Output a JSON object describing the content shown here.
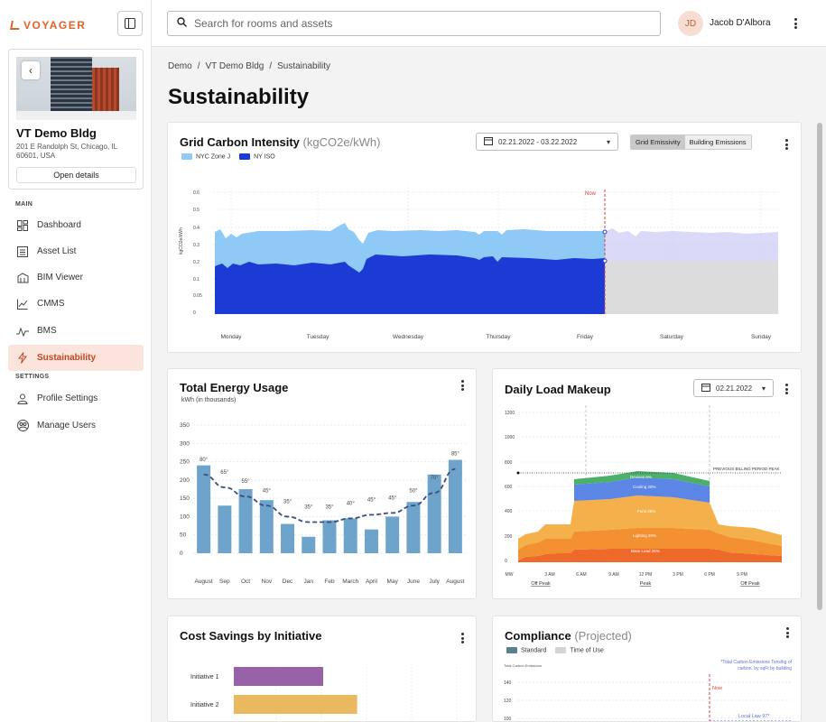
{
  "brand": {
    "name": "VOYAGER",
    "accent": "#e0622d"
  },
  "building": {
    "name": "VT Demo Bldg",
    "address": "201 E Randolph St, Chicago, IL 60601, USA",
    "open_details": "Open details"
  },
  "nav": {
    "main_label": "MAIN",
    "settings_label": "SETTINGS",
    "items": [
      {
        "label": "Dashboard",
        "icon": "dashboard-icon"
      },
      {
        "label": "Asset List",
        "icon": "list-icon"
      },
      {
        "label": "BIM Viewer",
        "icon": "building-icon"
      },
      {
        "label": "CMMS",
        "icon": "chart-icon"
      },
      {
        "label": "BMS",
        "icon": "pulse-icon"
      },
      {
        "label": "Sustainability",
        "icon": "bolt-icon",
        "active": true
      }
    ],
    "settings_items": [
      {
        "label": "Profile Settings",
        "icon": "user-icon"
      },
      {
        "label": "Manage Users",
        "icon": "users-icon"
      }
    ]
  },
  "search": {
    "placeholder": "Search for rooms and assets",
    "value": ""
  },
  "user": {
    "initials": "JD",
    "name": "Jacob D'Albora"
  },
  "breadcrumb": [
    "Demo",
    "VT Demo Bldg",
    "Sustainability"
  ],
  "page_title": "Sustainability",
  "grid_carbon": {
    "title": "Grid Carbon Intensity",
    "unit": "(kgCO2e/kWh)",
    "date_range": "02.21.2022 - 03.22.2022",
    "toggles": [
      "Grid Emissivity",
      "Building Emissions"
    ],
    "active_toggle": "Grid Emissivity",
    "legend": [
      {
        "name": "NYC Zone J",
        "color": "#8fc9f5"
      },
      {
        "name": "NY ISO",
        "color": "#1b3bd4"
      }
    ],
    "now_label": "Now",
    "ylabel": "kgCO2e/kWh",
    "y_ticks": [
      "0",
      "0.05",
      "0.1",
      "0.2",
      "0.3",
      "0.4",
      "0.5",
      "0.6"
    ],
    "days": [
      "Monday",
      "Tuesday",
      "Wednesday",
      "Thursday",
      "Friday",
      "Saturday",
      "Sunday"
    ]
  },
  "energy_usage": {
    "title": "Total Energy Usage",
    "subtitle": "kWh (in thousands)"
  },
  "daily_load": {
    "title": "Daily Load Makeup",
    "date": "02.21.2022",
    "y_ticks": [
      "0",
      "200",
      "400",
      "600",
      "800",
      "1000",
      "1200"
    ],
    "x_ticks": [
      "MW",
      "3 AM",
      "6 AM",
      "9 AM",
      "12 PM",
      "3 PM",
      "6 PM",
      "9 PM"
    ],
    "period_labels": [
      "Off Peak",
      "Peak",
      "Off Peak"
    ],
    "billing_label": "PREVIOUS BILLING PERIOD PEAK",
    "layers": [
      {
        "name": "Devices 6%",
        "color": "#4caf6a"
      },
      {
        "name": "Cooling 20%",
        "color": "#5b86e5"
      },
      {
        "name": "Fans 25%",
        "color": "#f4b04a"
      },
      {
        "name": "Lighting 20%",
        "color": "#f39032"
      },
      {
        "name": "Base Load 25%",
        "color": "#ee6a2a"
      }
    ]
  },
  "cost_savings": {
    "title": "Cost Savings by Initiative",
    "initiatives": [
      {
        "label": "Initiative 1",
        "color": "#9862a8"
      },
      {
        "label": "Initiative 2",
        "color": "#eab85e"
      }
    ]
  },
  "compliance": {
    "title": "Compliance",
    "title_suffix": "(Projected)",
    "legend": [
      {
        "name": "Standard",
        "color": "#5c7f8f"
      },
      {
        "name": "Time of Use",
        "color": "#d4d4d4"
      }
    ],
    "note": "*Total Carbon Emissions Tons/kg of carbon. by sqFt by building",
    "ylabel": "Total Carbon Emissions",
    "y_ticks": [
      "100",
      "120",
      "140"
    ],
    "now_label": "Now",
    "law_label": "Local Law 97*"
  },
  "chart_data": [
    {
      "type": "bar",
      "title": "Total Energy Usage",
      "ylabel": "kWh (in thousands)",
      "ylim": [
        0,
        350
      ],
      "y_ticks": [
        0,
        50,
        100,
        150,
        200,
        250,
        300,
        350
      ],
      "categories": [
        "August",
        "Sep",
        "Oct",
        "Nov",
        "Dec",
        "Jan",
        "Feb",
        "March",
        "April",
        "May",
        "June",
        "July",
        "August"
      ],
      "series": [
        {
          "values": [
            240,
            130,
            175,
            145,
            80,
            45,
            90,
            95,
            65,
            100,
            140,
            215,
            255
          ]
        }
      ],
      "line_labels": [
        "80°",
        "65°",
        "55°",
        "45°",
        "35°",
        "35°",
        "35°",
        "40°",
        "45°",
        "45°",
        "50°",
        "70°",
        "85°"
      ],
      "line_values": [
        215,
        180,
        155,
        130,
        100,
        85,
        85,
        95,
        105,
        110,
        130,
        165,
        230
      ]
    },
    {
      "type": "bar",
      "title": "Cost Savings by Initiative",
      "orientation": "horizontal",
      "categories": [
        "Initiative 1",
        "Initiative 2"
      ],
      "values": [
        100,
        138
      ]
    }
  ]
}
